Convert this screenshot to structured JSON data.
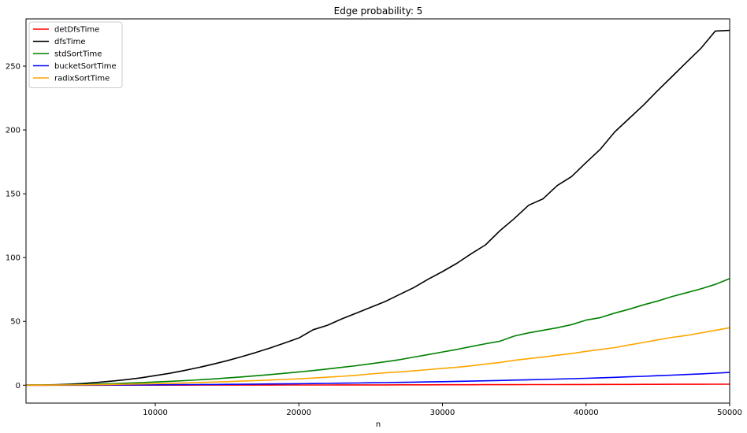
{
  "chart_data": {
    "type": "line",
    "title": "Edge probability: 5",
    "xlabel": "n",
    "ylabel": "",
    "xlim": [
      1000,
      50000
    ],
    "ylim": [
      -14,
      287
    ],
    "xticks": [
      10000,
      20000,
      30000,
      40000,
      50000
    ],
    "yticks": [
      0,
      50,
      100,
      150,
      200,
      250
    ],
    "grid": false,
    "legend_position": "top-left",
    "x": [
      1000,
      2000,
      3000,
      4000,
      5000,
      6000,
      7000,
      8000,
      9000,
      10000,
      11000,
      12000,
      13000,
      14000,
      15000,
      16000,
      17000,
      18000,
      19000,
      20000,
      21000,
      22000,
      23000,
      24000,
      25000,
      26000,
      27000,
      28000,
      29000,
      30000,
      31000,
      32000,
      33000,
      34000,
      35000,
      36000,
      37000,
      38000,
      39000,
      40000,
      41000,
      42000,
      43000,
      44000,
      45000,
      46000,
      47000,
      48000,
      49000,
      50000
    ],
    "series": [
      {
        "name": "detDfsTime",
        "color": "#ff0000",
        "values": [
          0.01,
          0.01,
          0.02,
          0.02,
          0.03,
          0.03,
          0.04,
          0.05,
          0.06,
          0.07,
          0.08,
          0.09,
          0.1,
          0.11,
          0.12,
          0.13,
          0.14,
          0.15,
          0.17,
          0.18,
          0.19,
          0.21,
          0.22,
          0.24,
          0.26,
          0.27,
          0.29,
          0.31,
          0.33,
          0.35,
          0.37,
          0.39,
          0.41,
          0.43,
          0.45,
          0.47,
          0.49,
          0.52,
          0.54,
          0.56,
          0.59,
          0.61,
          0.64,
          0.66,
          0.69,
          0.72,
          0.74,
          0.77,
          0.8,
          0.83
        ]
      },
      {
        "name": "dfsTime",
        "color": "#000000",
        "values": [
          0.1,
          0.2,
          0.4,
          0.8,
          1.4,
          2.2,
          3.2,
          4.4,
          5.8,
          7.5,
          9.3,
          11.5,
          13.8,
          16.4,
          19.2,
          22.3,
          25.6,
          29.2,
          33.0,
          37.0,
          43.5,
          47.0,
          52.0,
          56.5,
          61.0,
          65.5,
          71.0,
          76.5,
          83.0,
          89.0,
          95.5,
          103.0,
          110.0,
          121.0,
          130.5,
          141.0,
          146.0,
          156.5,
          163.5,
          174.5,
          185.0,
          198.5,
          209.0,
          219.5,
          231.0,
          242.0,
          253.0,
          264.0,
          277.5,
          278.0
        ]
      },
      {
        "name": "stdSortTime",
        "color": "#008000",
        "values": [
          0.05,
          0.1,
          0.2,
          0.4,
          0.6,
          0.9,
          1.2,
          1.6,
          2.0,
          2.5,
          3.0,
          3.6,
          4.2,
          4.9,
          5.7,
          6.5,
          7.4,
          8.3,
          9.3,
          10.4,
          11.5,
          12.7,
          14.0,
          15.3,
          16.8,
          18.3,
          20.0,
          22.0,
          24.0,
          26.0,
          28.0,
          30.3,
          32.5,
          34.5,
          38.5,
          41.0,
          43.0,
          45.0,
          47.5,
          51.0,
          53.0,
          56.5,
          59.5,
          63.0,
          66.0,
          69.5,
          72.5,
          75.5,
          79.0,
          83.5
        ]
      },
      {
        "name": "bucketSortTime",
        "color": "#0000ff",
        "values": [
          0.01,
          0.02,
          0.04,
          0.06,
          0.09,
          0.12,
          0.16,
          0.2,
          0.25,
          0.3,
          0.36,
          0.42,
          0.5,
          0.58,
          0.67,
          0.76,
          0.86,
          0.96,
          1.07,
          1.19,
          1.32,
          1.45,
          1.6,
          1.75,
          1.9,
          2.06,
          2.23,
          2.4,
          2.6,
          2.8,
          3.0,
          3.2,
          3.45,
          3.7,
          4.0,
          4.25,
          4.5,
          4.8,
          5.1,
          5.45,
          5.8,
          6.15,
          6.6,
          7.0,
          7.45,
          7.9,
          8.4,
          8.9,
          9.45,
          10.0
        ]
      },
      {
        "name": "radixSortTime",
        "color": "#ffa500",
        "values": [
          0.03,
          0.06,
          0.1,
          0.2,
          0.3,
          0.45,
          0.6,
          0.8,
          1.0,
          1.25,
          1.5,
          1.8,
          2.1,
          2.45,
          2.8,
          3.2,
          3.6,
          4.05,
          4.5,
          5.0,
          5.6,
          6.3,
          7.0,
          7.8,
          8.8,
          9.7,
          10.4,
          11.2,
          12.2,
          13.2,
          14.0,
          15.2,
          16.6,
          17.8,
          19.5,
          20.8,
          22.0,
          23.5,
          24.8,
          26.5,
          28.0,
          29.5,
          31.5,
          33.5,
          35.5,
          37.5,
          39.0,
          41.0,
          43.0,
          45.0
        ]
      }
    ]
  }
}
